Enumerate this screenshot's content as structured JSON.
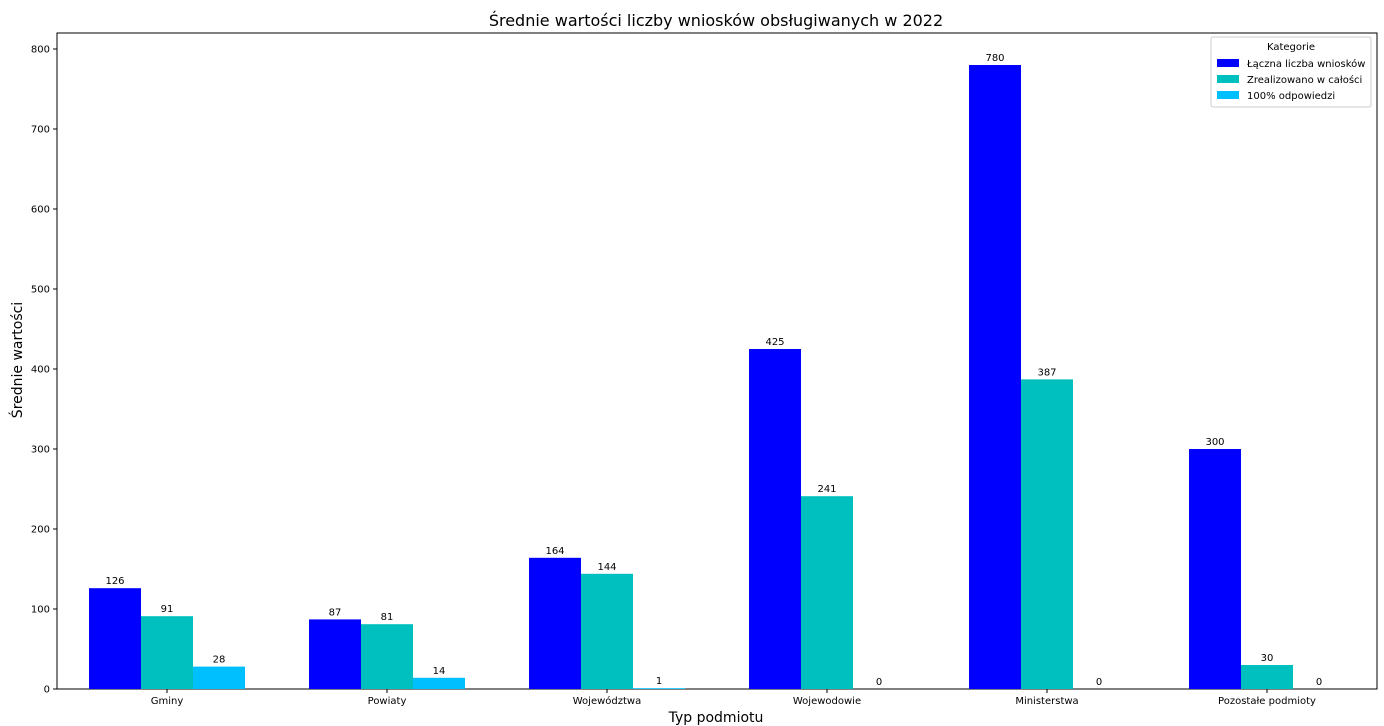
{
  "chart_data": {
    "type": "bar",
    "title": "Średnie wartości liczby wniosków obsługiwanych w 2022",
    "xlabel": "Typ podmiotu",
    "ylabel": "Średnie wartości",
    "categories": [
      "Gminy",
      "Powiaty",
      "Województwa",
      "Wojewodowie",
      "Ministerstwa",
      "Pozostałe podmioty"
    ],
    "series": [
      {
        "name": "Łączna liczba wniosków",
        "color": "#0000ff",
        "values": [
          126,
          87,
          164,
          425,
          780,
          300
        ]
      },
      {
        "name": "Zrealizowano w całości",
        "color": "#00bfbf",
        "values": [
          91,
          81,
          144,
          241,
          387,
          30
        ]
      },
      {
        "name": "100% odpowiedzi",
        "color": "#00bfff",
        "values": [
          28,
          14,
          1,
          0,
          0,
          0
        ]
      }
    ],
    "ylim": [
      0,
      820
    ],
    "yticks": [
      0,
      100,
      200,
      300,
      400,
      500,
      600,
      700,
      800
    ],
    "grid": false,
    "legend": {
      "title": "Kategorie",
      "placement": "top-right"
    }
  }
}
